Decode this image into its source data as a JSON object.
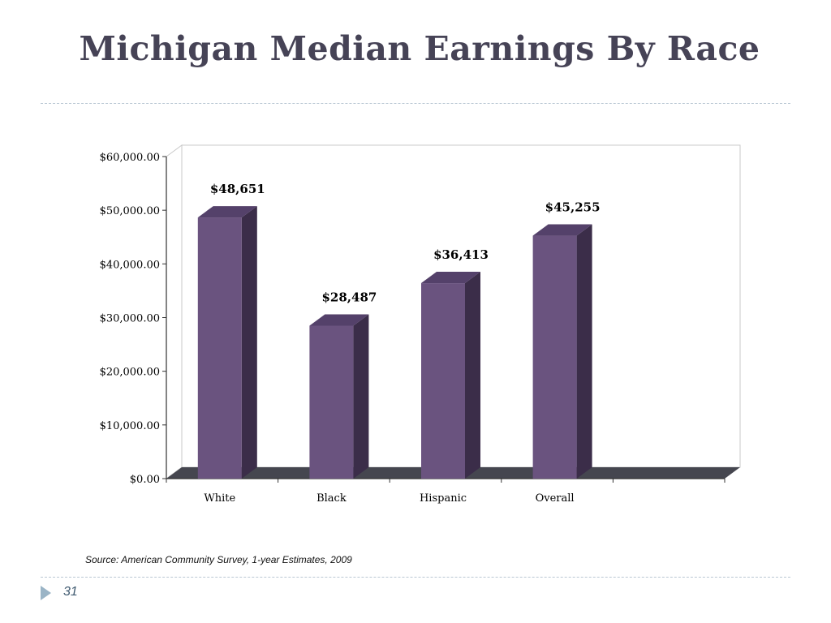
{
  "slide": {
    "title": "Michigan Median Earnings By Race",
    "source": "Source:  American Community Survey, 1-year Estimates, 2009",
    "page_number": "31"
  },
  "colors": {
    "bar_front": "#6a537f",
    "bar_side": "#3b2d49",
    "bar_top": "#54416a",
    "floor": "#45464f",
    "title": "#464356",
    "divider": "#b9c7d3",
    "page_marker": "#9ab4c6"
  },
  "chart_data": {
    "type": "bar",
    "style": "3d-column",
    "categories": [
      "White",
      "Black",
      "Hispanic",
      "Overall"
    ],
    "values": [
      48651,
      28487,
      36413,
      45255
    ],
    "data_labels": [
      "$48,651",
      "$28,487",
      "$36,413",
      "$45,255"
    ],
    "y_ticks": [
      0,
      10000,
      20000,
      30000,
      40000,
      50000,
      60000
    ],
    "y_tick_labels": [
      "$0.00",
      "$10,000.00",
      "$20,000.00",
      "$30,000.00",
      "$40,000.00",
      "$50,000.00",
      "$60,000.00"
    ],
    "ylim": [
      0,
      60000
    ],
    "category_slots": 5,
    "grid": false,
    "legend": "none",
    "title": "",
    "xlabel": "",
    "ylabel": ""
  }
}
